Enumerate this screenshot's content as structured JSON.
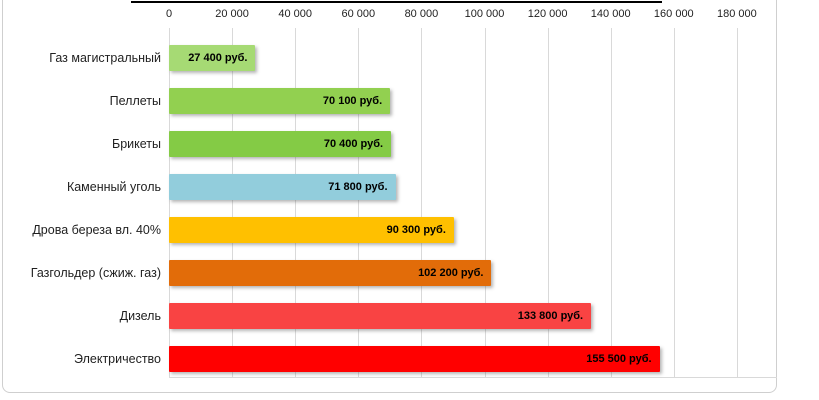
{
  "chart_data": {
    "type": "bar",
    "orientation": "horizontal",
    "title": "",
    "unit": "руб.",
    "grid": true,
    "legend": "none",
    "x_axis": {
      "position": "top",
      "range": [
        0,
        192000
      ],
      "ticks": [
        {
          "value": 0,
          "label": "0"
        },
        {
          "value": 20000,
          "label": "20 000"
        },
        {
          "value": 40000,
          "label": "40 000"
        },
        {
          "value": 60000,
          "label": "60 000"
        },
        {
          "value": 80000,
          "label": "80 000"
        },
        {
          "value": 100000,
          "label": "100 000"
        },
        {
          "value": 120000,
          "label": "120 000"
        },
        {
          "value": 140000,
          "label": "140 000"
        },
        {
          "value": 160000,
          "label": "160 000"
        },
        {
          "value": 180000,
          "label": "180 000"
        }
      ]
    },
    "categories": [
      "Газ магистральный",
      "Пеллеты",
      "Брикеты",
      "Каменный уголь",
      "Дрова береза вл. 40%",
      "Газгольдер (сжиж. газ)",
      "Дизель",
      "Электричество"
    ],
    "values": [
      27400,
      70100,
      70400,
      71800,
      90300,
      102200,
      133800,
      155500
    ],
    "data_labels": [
      "27 400 руб.",
      "70 100 руб.",
      "70 400 руб.",
      "71 800 руб.",
      "90 300 руб.",
      "102 200 руб.",
      "133 800 руб.",
      "155 500 руб."
    ],
    "colors": [
      "#A6DA74",
      "#92D050",
      "#84CB45",
      "#92CDDC",
      "#FFC000",
      "#E26C09",
      "#F94343",
      "#FF0000"
    ],
    "frame_border_color": "#cfcfcf",
    "gridline_color": "#d9d9d9"
  }
}
